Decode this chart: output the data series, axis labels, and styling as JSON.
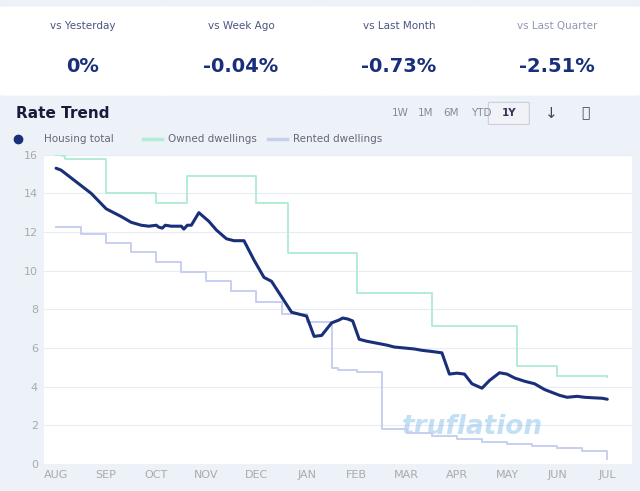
{
  "title_trend": "Rate Trend",
  "page_bg": "#edf2f9",
  "chart_bg": "#ffffff",
  "stat_box_bg": "#dce8f5",
  "stat_card_bg": "#ffffff",
  "stat_boxes": [
    {
      "label": "vs Yesterday",
      "value": "0%",
      "label_color": "#4a5580"
    },
    {
      "label": "vs Week Ago",
      "value": "-0.04%",
      "label_color": "#4a5580"
    },
    {
      "label": "vs Last Month",
      "value": "-0.73%",
      "label_color": "#4a5580"
    },
    {
      "label": "vs Last Quarter",
      "value": "-2.51%",
      "label_color": "#9098b0"
    }
  ],
  "stat_value_color": "#1a2f7a",
  "time_buttons": [
    "1W",
    "1M",
    "6M",
    "YTD",
    "1Y"
  ],
  "legend": [
    {
      "label": "Housing total",
      "color": "#1a2f7a"
    },
    {
      "label": "Owned dwellings",
      "color": "#b2ecd4"
    },
    {
      "label": "Rented dwellings",
      "color": "#c8cef0"
    }
  ],
  "x_labels": [
    "AUG",
    "SEP",
    "OCT",
    "NOV",
    "DEC",
    "JAN",
    "FEB",
    "MAR",
    "APR",
    "MAY",
    "JUN",
    "JUL"
  ],
  "x_positions": [
    0,
    1,
    2,
    3,
    4,
    5,
    6,
    7,
    8,
    9,
    10,
    11
  ],
  "ylim": [
    0,
    16
  ],
  "yticks": [
    0,
    2,
    4,
    6,
    8,
    10,
    12,
    14,
    16
  ],
  "housing_total_x": [
    0.0,
    0.1,
    0.2,
    0.35,
    0.5,
    0.7,
    0.85,
    1.0,
    1.15,
    1.3,
    1.5,
    1.7,
    1.85,
    2.0,
    2.05,
    2.12,
    2.18,
    2.3,
    2.5,
    2.55,
    2.62,
    2.7,
    2.85,
    3.05,
    3.2,
    3.4,
    3.55,
    3.75,
    3.95,
    4.15,
    4.3,
    4.5,
    4.7,
    4.85,
    5.0,
    5.15,
    5.3,
    5.5,
    5.65,
    5.72,
    5.82,
    5.92,
    6.05,
    6.2,
    6.4,
    6.6,
    6.75,
    6.95,
    7.15,
    7.3,
    7.5,
    7.7,
    7.85,
    8.0,
    8.15,
    8.3,
    8.5,
    8.65,
    8.85,
    9.0,
    9.15,
    9.35,
    9.55,
    9.75,
    9.9,
    10.05,
    10.2,
    10.4,
    10.55,
    10.75,
    10.9,
    11.0
  ],
  "housing_total_y": [
    15.3,
    15.2,
    15.0,
    14.7,
    14.4,
    14.0,
    13.6,
    13.2,
    13.0,
    12.8,
    12.5,
    12.35,
    12.3,
    12.35,
    12.25,
    12.2,
    12.35,
    12.3,
    12.3,
    12.15,
    12.35,
    12.35,
    13.0,
    12.55,
    12.1,
    11.65,
    11.55,
    11.55,
    10.55,
    9.65,
    9.45,
    8.65,
    7.85,
    7.75,
    7.65,
    6.6,
    6.65,
    7.3,
    7.45,
    7.55,
    7.5,
    7.4,
    6.45,
    6.35,
    6.25,
    6.15,
    6.05,
    6.0,
    5.95,
    5.88,
    5.82,
    5.75,
    4.65,
    4.7,
    4.65,
    4.15,
    3.92,
    4.32,
    4.72,
    4.65,
    4.45,
    4.28,
    4.15,
    3.85,
    3.7,
    3.55,
    3.45,
    3.5,
    3.45,
    3.42,
    3.4,
    3.35
  ],
  "owned_dwellings_x": [
    0.0,
    0.12,
    0.18,
    1.0,
    2.0,
    2.5,
    2.62,
    3.5,
    4.0,
    4.5,
    4.62,
    5.5,
    6.0,
    6.5,
    7.0,
    7.5,
    8.0,
    8.5,
    9.0,
    9.2,
    9.5,
    10.0,
    10.5,
    11.0
  ],
  "owned_dwellings_y": [
    16.0,
    15.95,
    15.8,
    14.0,
    13.5,
    13.5,
    14.9,
    14.9,
    13.5,
    13.5,
    10.9,
    10.9,
    8.85,
    8.85,
    8.85,
    7.15,
    7.15,
    7.15,
    7.15,
    5.05,
    5.05,
    4.55,
    4.55,
    4.5
  ],
  "rented_dwellings_x": [
    0.0,
    0.5,
    1.0,
    1.5,
    2.0,
    2.5,
    3.0,
    3.5,
    4.0,
    4.5,
    5.0,
    5.5,
    5.62,
    6.0,
    6.5,
    7.0,
    7.5,
    8.0,
    8.5,
    9.0,
    9.5,
    10.0,
    10.5,
    11.0
  ],
  "rented_dwellings_y": [
    12.25,
    11.9,
    11.45,
    10.95,
    10.45,
    9.95,
    9.45,
    8.95,
    8.4,
    7.75,
    7.35,
    4.95,
    4.85,
    4.75,
    1.8,
    1.6,
    1.45,
    1.3,
    1.15,
    1.05,
    0.95,
    0.85,
    0.65,
    0.28
  ],
  "watermark": "truflation",
  "watermark_color": "#7bb8e8",
  "watermark_alpha": 0.45,
  "grid_color": "#e8ecf4",
  "tick_color": "#aaaaaa"
}
